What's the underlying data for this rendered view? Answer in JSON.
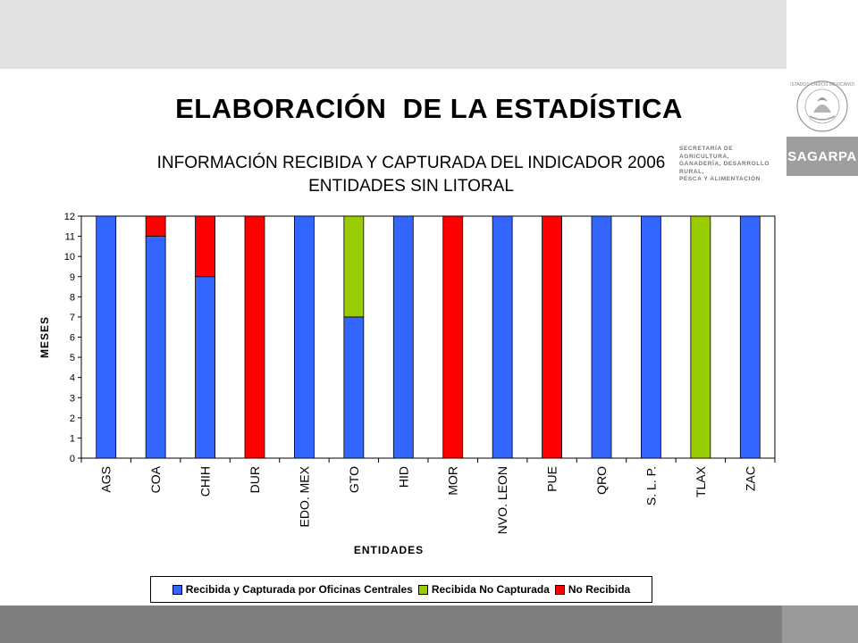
{
  "slide": {
    "title": "ELABORACIÓN  DE LA ESTADÍSTICA",
    "subtitle_line1": "INFORMACIÓN RECIBIDA Y CAPTURADA DEL INDICADOR 2006",
    "subtitle_line2": "ENTIDADES SIN LITORAL"
  },
  "branding": {
    "agency_line1": "SECRETARÍA DE AGRICULTURA,",
    "agency_line2": "GANADERÍA, DESARROLLO RURAL,",
    "agency_line3": "PESCA Y ALIMENTACIÓN",
    "brand_name": "SAGARPA"
  },
  "colors": {
    "received_captured": "#3366ff",
    "received_not_captured": "#99cc00",
    "not_received": "#ff0000"
  },
  "chart_data": {
    "type": "bar",
    "stacked": true,
    "title": "",
    "xlabel": "ENTIDADES",
    "ylabel": "MESES",
    "ylim": [
      0,
      12
    ],
    "yticks": [
      0,
      1,
      2,
      3,
      4,
      5,
      6,
      7,
      8,
      9,
      10,
      11,
      12
    ],
    "grid": false,
    "legend_position": "bottom",
    "categories": [
      "AGS",
      "COA",
      "CHIH",
      "DUR",
      "EDO. MEX",
      "GTO",
      "HID",
      "MOR",
      "NVO. LEON",
      "PUE",
      "QRO",
      "S. L. P.",
      "TLAX",
      "ZAC"
    ],
    "series": [
      {
        "name": "Recibida y Capturada por Oficinas Centrales",
        "color": "#3366ff",
        "values": [
          12,
          11,
          9,
          0,
          12,
          7,
          12,
          0,
          12,
          0,
          12,
          12,
          0,
          12
        ]
      },
      {
        "name": "Recibida No Capturada",
        "color": "#99cc00",
        "values": [
          0,
          0,
          0,
          0,
          0,
          5,
          0,
          0,
          0,
          0,
          0,
          0,
          12,
          0
        ]
      },
      {
        "name": "No Recibida",
        "color": "#ff0000",
        "values": [
          0,
          1,
          3,
          12,
          0,
          0,
          0,
          12,
          0,
          12,
          0,
          0,
          0,
          0
        ]
      }
    ]
  }
}
